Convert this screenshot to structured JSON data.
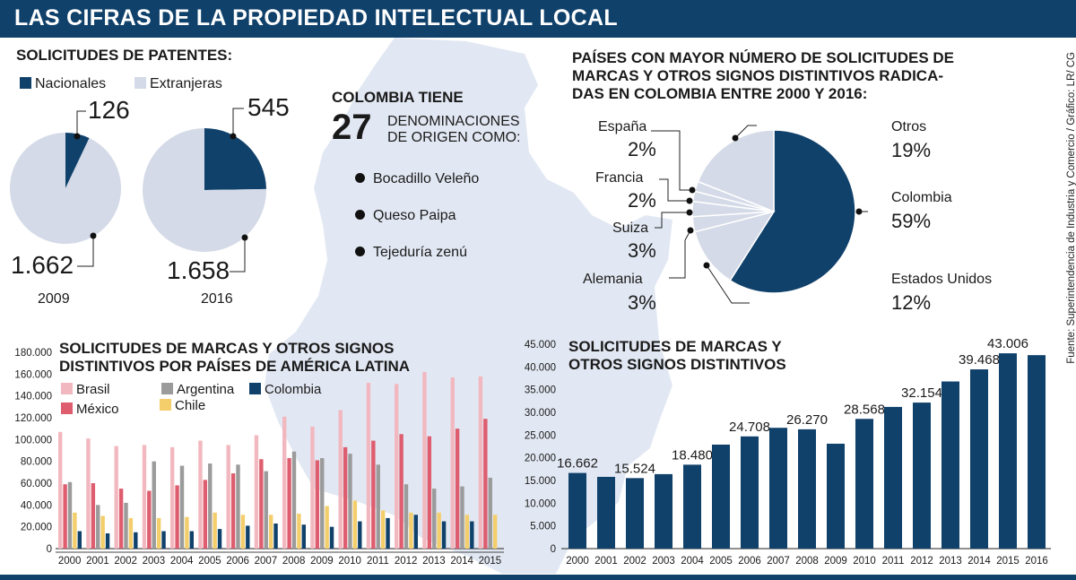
{
  "header": {
    "title": "LAS CIFRAS DE LA PROPIEDAD INTELECTUAL LOCAL"
  },
  "credit": "Fuente: Superintendencia de Industria y Comercio / Gráfico: LR/ CG",
  "colors": {
    "navy": "#10416b",
    "light": "#d4dae7",
    "brasil": "#f2b8bf",
    "mexico": "#de5d6e",
    "argentina": "#9b9b9b",
    "chile": "#f3ce6b",
    "colombia": "#10416b"
  },
  "patentes": {
    "title": "SOLICITUDES DE PATENTES:",
    "legend_nacionales": "Nacionales",
    "legend_extranjeras": "Extranjeras",
    "y2009": {
      "year": "2009",
      "nacionales": "126",
      "extranjeras": "1.662"
    },
    "y2016": {
      "year": "2016",
      "nacionales": "545",
      "extranjeras": "1.658"
    }
  },
  "origen": {
    "line1": "COLOMBIA TIENE",
    "number": "27",
    "text1": "DENOMINACIONES",
    "text2": "DE ORIGEN COMO:",
    "items": [
      "Bocadillo Veleño",
      "Queso Paipa",
      "Tejeduría zenú"
    ]
  },
  "paises": {
    "title1": "PAÍSES CON MAYOR NÚMERO DE SOLICITUDES DE",
    "title2": "MARCAS Y OTROS SIGNOS DISTINTIVOS RADICA-",
    "title3": "DAS EN COLOMBIA ENTRE 2000 Y 2016:",
    "slices": [
      {
        "name": "Colombia",
        "pct": "59%"
      },
      {
        "name": "Estados Unidos",
        "pct": "12%"
      },
      {
        "name": "Alemania",
        "pct": "3%"
      },
      {
        "name": "Suiza",
        "pct": "3%"
      },
      {
        "name": "Francia",
        "pct": "2%"
      },
      {
        "name": "España",
        "pct": "2%"
      },
      {
        "name": "Otros",
        "pct": "19%"
      }
    ]
  },
  "latam": {
    "title1": "SOLICITUDES DE MARCAS Y OTROS SIGNOS",
    "title2": "DISTINTIVOS POR PAÍSES DE AMÉRICA LATINA",
    "legend": [
      "Brasil",
      "Argentina",
      "Colombia",
      "México",
      "Chile"
    ]
  },
  "marcas": {
    "title1": "SOLICITUDES DE MARCAS Y",
    "title2": "OTROS SIGNOS DISTINTIVOS"
  },
  "chart_data": [
    {
      "type": "pie",
      "title": "SOLICITUDES DE PATENTES: 2009",
      "labels": [
        "Nacionales",
        "Extranjeras"
      ],
      "values": [
        126,
        1662
      ]
    },
    {
      "type": "pie",
      "title": "SOLICITUDES DE PATENTES: 2016",
      "labels": [
        "Nacionales",
        "Extranjeras"
      ],
      "values": [
        545,
        1658
      ]
    },
    {
      "type": "pie",
      "title": "PAÍSES CON MAYOR NÚMERO DE SOLICITUDES DE MARCAS Y OTROS SIGNOS DISTINTIVOS RADICADAS EN COLOMBIA ENTRE 2000 Y 2016:",
      "labels": [
        "Colombia",
        "Estados Unidos",
        "Alemania",
        "Suiza",
        "Francia",
        "España",
        "Otros"
      ],
      "values": [
        59,
        12,
        3,
        3,
        2,
        2,
        19
      ]
    },
    {
      "type": "bar",
      "title": "SOLICITUDES DE MARCAS Y OTROS SIGNOS DISTINTIVOS POR PAÍSES DE AMÉRICA LATINA",
      "categories": [
        "2000",
        "2001",
        "2002",
        "2003",
        "2004",
        "2005",
        "2006",
        "2007",
        "2008",
        "2009",
        "2010",
        "2011",
        "2012",
        "2013",
        "2014",
        "2015"
      ],
      "ylim": [
        0,
        180000
      ],
      "yticks": [
        "0",
        "20.000",
        "40.000",
        "60.000",
        "80.000",
        "100.000",
        "120.000",
        "140.000",
        "160.000",
        "180.000"
      ],
      "legend": "top",
      "series": [
        {
          "name": "Brasil",
          "values": [
            107000,
            101000,
            94000,
            95000,
            93000,
            99000,
            95000,
            104000,
            121000,
            112000,
            127000,
            152000,
            151000,
            162000,
            157000,
            158000
          ]
        },
        {
          "name": "México",
          "values": [
            59000,
            60000,
            55000,
            53000,
            58000,
            63000,
            69000,
            82000,
            83000,
            81000,
            93000,
            99000,
            105000,
            103000,
            110000,
            119000
          ]
        },
        {
          "name": "Argentina",
          "values": [
            61000,
            40000,
            42000,
            80000,
            76000,
            78000,
            77000,
            71000,
            89000,
            83000,
            87000,
            77000,
            59000,
            55000,
            57000,
            65000
          ]
        },
        {
          "name": "Chile",
          "values": [
            33000,
            30000,
            28000,
            28000,
            29000,
            33000,
            31000,
            31000,
            32000,
            39000,
            44000,
            35000,
            33000,
            33000,
            31000,
            31000
          ]
        },
        {
          "name": "Colombia",
          "values": [
            16000,
            14000,
            15000,
            16000,
            16000,
            18000,
            21000,
            23000,
            22000,
            20000,
            25000,
            28000,
            31000,
            25000,
            25000,
            0
          ]
        }
      ]
    },
    {
      "type": "bar",
      "title": "SOLICITUDES DE MARCAS Y OTROS SIGNOS DISTINTIVOS",
      "categories": [
        "2000",
        "2001",
        "2002",
        "2003",
        "2004",
        "2005",
        "2006",
        "2007",
        "2008",
        "2009",
        "2010",
        "2011",
        "2012",
        "2013",
        "2014",
        "2015",
        "2016"
      ],
      "values": [
        16662,
        15800,
        15524,
        16400,
        18480,
        22900,
        24708,
        26600,
        26270,
        23100,
        28568,
        31200,
        32154,
        36800,
        39468,
        43006,
        42600
      ],
      "data_labels": {
        "0": "16.662",
        "2": "15.524",
        "4": "18.480",
        "6": "24.708",
        "8": "26.270",
        "10": "28.568",
        "12": "32.154",
        "14": "39.468",
        "15": "43.006"
      },
      "ylim": [
        0,
        45000
      ],
      "yticks": [
        "0",
        "5.000",
        "10.000",
        "15.000",
        "20.000",
        "25.000",
        "30.000",
        "35.000",
        "40.000",
        "45.000"
      ]
    }
  ]
}
